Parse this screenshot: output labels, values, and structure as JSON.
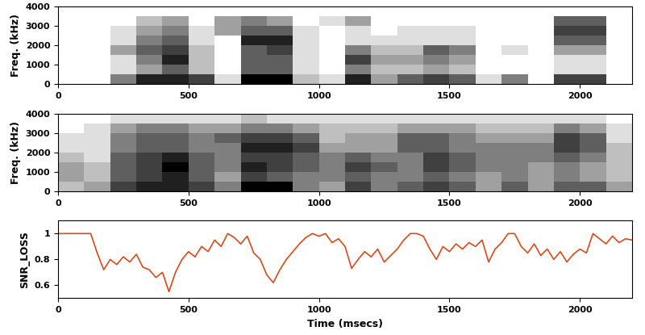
{
  "chart_data": [
    {
      "type": "heatmap",
      "ylabel": "Freq. (kHz)",
      "time_bins": [
        0,
        100,
        200,
        300,
        400,
        500,
        600,
        700,
        800,
        900,
        1000,
        1100,
        1200,
        1300,
        1400,
        1500,
        1600,
        1700,
        1800,
        1900,
        2000,
        2100,
        2200
      ],
      "freq_bins": [
        0,
        500,
        1000,
        1500,
        2000,
        2500,
        3000,
        3500,
        4000
      ],
      "cells": [
        [
          0,
          0,
          0.4,
          0.7,
          0.7,
          0.6,
          0.1,
          0.8,
          0.8,
          0.2,
          0.1,
          0.7,
          0.3,
          0.5,
          0.6,
          0.5,
          0.1,
          0.4,
          0,
          0.6,
          0.6,
          0
        ],
        [
          0,
          0,
          0.1,
          0.3,
          0.5,
          0.2,
          0,
          0.5,
          0.5,
          0.1,
          0,
          0.4,
          0.2,
          0.2,
          0.3,
          0.2,
          0,
          0,
          0,
          0.1,
          0.1,
          0
        ],
        [
          0,
          0,
          0.1,
          0.4,
          0.7,
          0.2,
          0,
          0.5,
          0.5,
          0.1,
          0,
          0.6,
          0.3,
          0.3,
          0.4,
          0.3,
          0,
          0,
          0,
          0.1,
          0.1,
          0
        ],
        [
          0,
          0,
          0.3,
          0.5,
          0.6,
          0.2,
          0,
          0.5,
          0.6,
          0.1,
          0,
          0.4,
          0.2,
          0.2,
          0.5,
          0.4,
          0,
          0.1,
          0,
          0.3,
          0.3,
          0
        ],
        [
          0,
          0,
          0.1,
          0.4,
          0.5,
          0.1,
          0,
          0.7,
          0.7,
          0.1,
          0,
          0.1,
          0.1,
          0.1,
          0.1,
          0.1,
          0,
          0,
          0,
          0.5,
          0.5,
          0
        ],
        [
          0,
          0,
          0.1,
          0.3,
          0.4,
          0.1,
          0.3,
          0.5,
          0.5,
          0.1,
          0,
          0.1,
          0,
          0.1,
          0.1,
          0.1,
          0,
          0,
          0,
          0.6,
          0.6,
          0
        ],
        [
          0,
          0,
          0,
          0.2,
          0.3,
          0,
          0.3,
          0.4,
          0.3,
          0,
          0.1,
          0.3,
          0,
          0,
          0,
          0,
          0,
          0,
          0,
          0.5,
          0.5,
          0
        ],
        [
          0,
          0,
          0,
          0,
          0,
          0,
          0,
          0,
          0,
          0,
          0,
          0,
          0,
          0,
          0,
          0,
          0,
          0,
          0,
          0,
          0,
          0
        ]
      ],
      "xlim": [
        0,
        2200
      ],
      "ylim": [
        0,
        4000
      ],
      "xticks": [
        0,
        500,
        1000,
        1500,
        2000
      ],
      "yticks": [
        0,
        1000,
        2000,
        3000,
        4000
      ]
    },
    {
      "type": "heatmap",
      "ylabel": "Freq. (kHz)",
      "time_bins": [
        0,
        100,
        200,
        300,
        400,
        500,
        600,
        700,
        800,
        900,
        1000,
        1100,
        1200,
        1300,
        1400,
        1500,
        1600,
        1700,
        1800,
        1900,
        2000,
        2100,
        2200
      ],
      "freq_bins": [
        0,
        500,
        1000,
        1500,
        2000,
        2500,
        3000,
        3500,
        4000
      ],
      "cells": [
        [
          0.2,
          0.3,
          0.6,
          0.7,
          0.7,
          0.6,
          0.4,
          0.8,
          0.8,
          0.4,
          0.3,
          0.6,
          0.4,
          0.5,
          0.6,
          0.5,
          0.3,
          0.5,
          0.3,
          0.5,
          0.5,
          0.3
        ],
        [
          0.3,
          0.2,
          0.5,
          0.6,
          0.7,
          0.5,
          0.3,
          0.6,
          0.5,
          0.4,
          0.4,
          0.5,
          0.4,
          0.4,
          0.5,
          0.4,
          0.3,
          0.4,
          0.3,
          0.4,
          0.3,
          0.2
        ],
        [
          0.3,
          0.2,
          0.5,
          0.6,
          0.8,
          0.5,
          0.4,
          0.7,
          0.6,
          0.5,
          0.4,
          0.6,
          0.5,
          0.4,
          0.6,
          0.5,
          0.4,
          0.4,
          0.3,
          0.4,
          0.3,
          0.2
        ],
        [
          0.2,
          0.1,
          0.5,
          0.6,
          0.7,
          0.5,
          0.4,
          0.6,
          0.6,
          0.5,
          0.4,
          0.5,
          0.4,
          0.4,
          0.6,
          0.5,
          0.4,
          0.4,
          0.4,
          0.5,
          0.4,
          0.2
        ],
        [
          0.1,
          0.1,
          0.4,
          0.5,
          0.5,
          0.4,
          0.4,
          0.7,
          0.7,
          0.6,
          0.3,
          0.3,
          0.3,
          0.5,
          0.5,
          0.4,
          0.4,
          0.4,
          0.4,
          0.6,
          0.5,
          0.2
        ],
        [
          0.1,
          0.1,
          0.4,
          0.5,
          0.5,
          0.4,
          0.5,
          0.6,
          0.6,
          0.5,
          0.2,
          0.3,
          0.3,
          0.5,
          0.5,
          0.4,
          0.3,
          0.3,
          0.3,
          0.6,
          0.5,
          0.1
        ],
        [
          0,
          0.1,
          0.3,
          0.4,
          0.4,
          0.3,
          0.3,
          0.4,
          0.4,
          0.3,
          0.2,
          0.2,
          0.2,
          0.3,
          0.3,
          0.3,
          0.2,
          0.2,
          0.2,
          0.4,
          0.3,
          0.1
        ],
        [
          0,
          0,
          0.1,
          0.1,
          0.1,
          0.1,
          0.1,
          0.2,
          0.1,
          0.1,
          0.1,
          0.1,
          0.1,
          0.1,
          0.1,
          0.1,
          0.1,
          0.1,
          0.1,
          0.1,
          0.1,
          0
        ]
      ],
      "xlim": [
        0,
        2200
      ],
      "ylim": [
        0,
        4000
      ],
      "xticks": [
        0,
        500,
        1000,
        1500,
        2000
      ],
      "yticks": [
        0,
        1000,
        2000,
        3000,
        4000
      ]
    },
    {
      "type": "line",
      "xlabel": "Time (msecs)",
      "ylabel": "SNR_LOSS",
      "color": "#d84a1b",
      "x": [
        0,
        25,
        50,
        75,
        100,
        125,
        150,
        175,
        200,
        225,
        250,
        275,
        300,
        325,
        350,
        375,
        400,
        425,
        450,
        475,
        500,
        525,
        550,
        575,
        600,
        625,
        650,
        675,
        700,
        725,
        750,
        775,
        800,
        825,
        850,
        875,
        900,
        925,
        950,
        975,
        1000,
        1025,
        1050,
        1075,
        1100,
        1125,
        1150,
        1175,
        1200,
        1225,
        1250,
        1275,
        1300,
        1325,
        1350,
        1375,
        1400,
        1425,
        1450,
        1475,
        1500,
        1525,
        1550,
        1575,
        1600,
        1625,
        1650,
        1675,
        1700,
        1725,
        1750,
        1775,
        1800,
        1825,
        1850,
        1875,
        1900,
        1925,
        1950,
        1975,
        2000,
        2025,
        2050,
        2075,
        2100,
        2125,
        2150,
        2175,
        2200
      ],
      "values": [
        1.0,
        1.0,
        1.0,
        1.0,
        1.0,
        1.0,
        0.85,
        0.72,
        0.8,
        0.76,
        0.82,
        0.78,
        0.84,
        0.74,
        0.72,
        0.66,
        0.7,
        0.55,
        0.7,
        0.8,
        0.86,
        0.82,
        0.9,
        0.86,
        0.95,
        0.9,
        1.0,
        0.97,
        0.92,
        0.98,
        0.85,
        0.8,
        0.68,
        0.62,
        0.72,
        0.8,
        0.86,
        0.92,
        0.97,
        1.0,
        0.98,
        1.0,
        0.93,
        0.96,
        0.9,
        0.73,
        0.8,
        0.86,
        0.82,
        0.88,
        0.78,
        0.83,
        0.88,
        0.95,
        1.0,
        1.0,
        0.98,
        0.88,
        0.8,
        0.9,
        0.86,
        0.92,
        0.88,
        0.93,
        0.9,
        0.95,
        0.78,
        0.88,
        0.93,
        1.0,
        1.0,
        0.9,
        0.85,
        0.92,
        0.83,
        0.88,
        0.8,
        0.86,
        0.78,
        0.84,
        0.88,
        0.85,
        1.0,
        0.96,
        0.92,
        0.98,
        0.93,
        0.96,
        0.95
      ],
      "xlim": [
        0,
        2200
      ],
      "ylim": [
        0.5,
        1.1
      ],
      "xticks": [
        0,
        500,
        1000,
        1500,
        2000
      ],
      "yticks": [
        0.6,
        0.8,
        1
      ]
    }
  ]
}
